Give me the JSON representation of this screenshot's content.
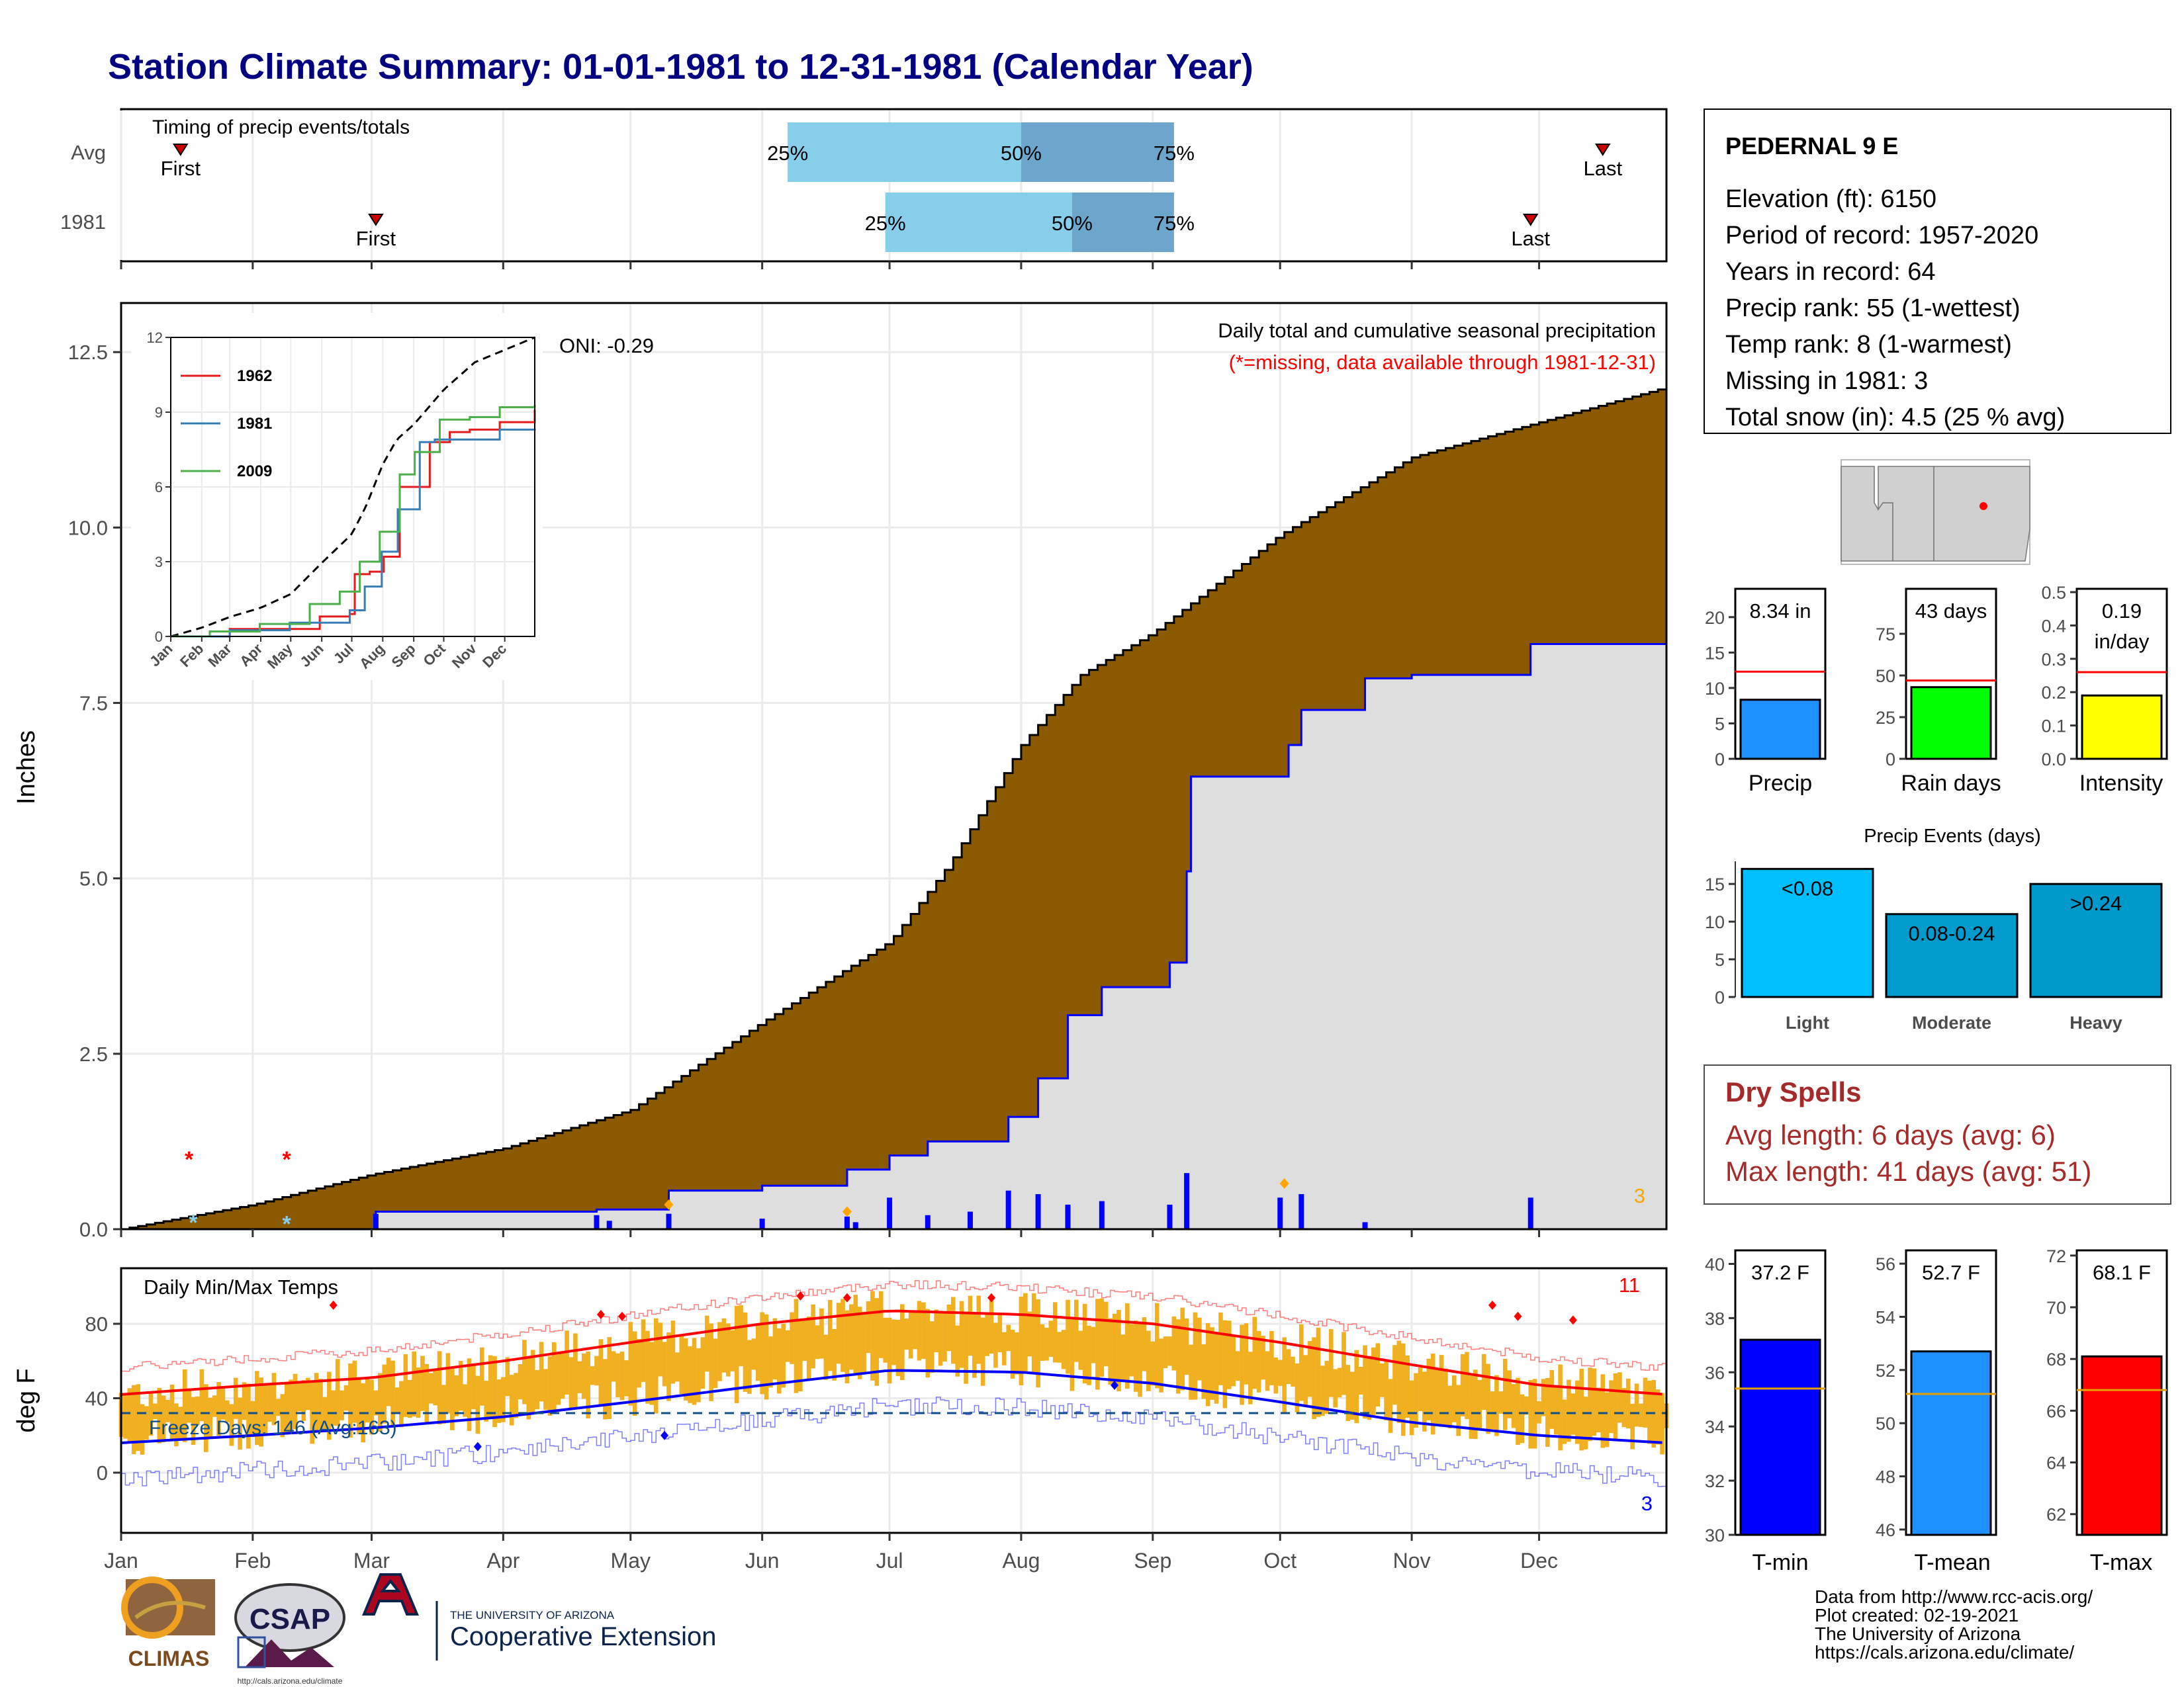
{
  "header": {
    "title": "Station Climate Summary: 01-01-1981 to 12-31-1981 (Calendar Year)"
  },
  "station": {
    "name": "PEDERNAL 9 E",
    "lines": [
      "Elevation (ft): 6150",
      "Period of record: 1957-2020",
      "Years in record: 64",
      "Precip rank: 55 (1-wettest)",
      "Temp rank: 8 (1-warmest)",
      "Missing in 1981: 3",
      "Total snow (in): 4.5 (25 % avg)"
    ]
  },
  "colors": {
    "title": "#000080",
    "accumulated": "#8B5A00",
    "precip_bar": "#1E90FF",
    "raindays_bar": "#00FF00",
    "intensity_bar": "#FFFF00",
    "light": "#00BFFF",
    "moderate": "#009ACD",
    "heavy": "#0099CC",
    "tmin": "#0000FF",
    "tmean": "#1E90FF",
    "tmax": "#FF0000",
    "temp_range": "#F0B020",
    "dry_spells": "#A52A2A"
  },
  "timing": {
    "title": "Timing of precip events/totals",
    "rows": [
      {
        "label": "Avg",
        "first_label": "First",
        "last_label": "Last",
        "first_date": "1981-01-15",
        "last_date": "1981-12-16",
        "p25": "1981-06-07",
        "p50": "1981-08-01",
        "p75": "1981-09-06",
        "p25_label": "25%",
        "p50_label": "50%",
        "p75_label": "75%"
      },
      {
        "label": "1981",
        "first_label": "First",
        "last_label": "Last",
        "first_date": "1981-03-02",
        "last_date": "1981-11-29",
        "p25": "1981-06-30",
        "p50": "1981-08-13",
        "p75": "1981-09-06",
        "p25_label": "25%",
        "p50_label": "50%",
        "p75_label": "75%"
      }
    ]
  },
  "main_chart": {
    "ylabel": "Inches",
    "subtitle": "Daily total and cumulative seasonal precipitation",
    "missing_note": "(*=missing, data available through 1981-12-31)",
    "oni": "ONI: -0.29",
    "missing_count": "3",
    "y_ticks": [
      "0.0",
      "2.5",
      "5.0",
      "7.5",
      "10.0",
      "12.5"
    ]
  },
  "months": [
    "Jan",
    "Feb",
    "Mar",
    "Apr",
    "May",
    "Jun",
    "Jul",
    "Aug",
    "Sep",
    "Oct",
    "Nov",
    "Dec"
  ],
  "inset": {
    "y_ticks": [
      "0",
      "3",
      "6",
      "9",
      "12"
    ],
    "legend": [
      {
        "name": "1962",
        "color": "#E41A1C"
      },
      {
        "name": "1981",
        "color": "#377EB8"
      },
      {
        "name": "2009",
        "color": "#4DAF4A"
      }
    ]
  },
  "temp_chart": {
    "ylabel": "deg F",
    "title": "Daily Min/Max Temps",
    "freeze_label": "Freeze Days: 146 (Avg:163)",
    "max_missing": "11",
    "min_missing": "3",
    "y_ticks": [
      "0",
      "40",
      "80"
    ]
  },
  "side_panels": {
    "precip": {
      "label": "Precip",
      "value_text": "8.34 in",
      "ticks": [
        "0",
        "5",
        "10",
        "15",
        "20"
      ]
    },
    "raindays": {
      "label": "Rain days",
      "value_text": "43 days",
      "ticks": [
        "0",
        "25",
        "50",
        "75"
      ]
    },
    "intensity": {
      "label": "Intensity",
      "value_line1": "0.19",
      "value_line2": "in/day",
      "ticks": [
        "0.0",
        "0.1",
        "0.2",
        "0.3",
        "0.4",
        "0.5"
      ]
    },
    "events": {
      "title": "Precip Events (days)",
      "ticks": [
        "0",
        "5",
        "10",
        "15"
      ],
      "bars": [
        {
          "cat": "Light",
          "label": "<0.08"
        },
        {
          "cat": "Moderate",
          "label": "0.08-0.24"
        },
        {
          "cat": "Heavy",
          "label": ">0.24"
        }
      ]
    },
    "dry_spells": {
      "title": "Dry Spells",
      "line1": "Avg length: 6 days (avg: 6)",
      "line2": "Max length: 41 days (avg: 51)"
    },
    "tmin": {
      "label": "T-min",
      "value_text": "37.2 F",
      "ticks": [
        "30",
        "32",
        "34",
        "36",
        "38",
        "40"
      ]
    },
    "tmean": {
      "label": "T-mean",
      "value_text": "52.7 F",
      "ticks": [
        "46",
        "48",
        "50",
        "52",
        "54",
        "56"
      ]
    },
    "tmax": {
      "label": "T-max",
      "value_text": "68.1 F",
      "ticks": [
        "62",
        "64",
        "66",
        "68",
        "70",
        "72"
      ]
    }
  },
  "logos": {
    "climas": "CLIMAS",
    "csap": "CSAP",
    "csap_url": "http://cals.arizona.edu/climate",
    "ua_small": "THE UNIVERSITY OF ARIZONA",
    "ua_ext": "Cooperative Extension"
  },
  "footer": [
    "Data from http://www.rcc-acis.org/",
    "Plot created: 02-19-2021",
    "The University of Arizona",
    "https://cals.arizona.edu/climate/"
  ],
  "chart_data": [
    {
      "type": "area",
      "title": "Daily total and cumulative seasonal precipitation",
      "ylabel": "Inches",
      "ylim": [
        0,
        13.2
      ],
      "series": [
        {
          "name": "cumulative average",
          "x": [
            "01-01",
            "02-01",
            "03-01",
            "04-01",
            "05-01",
            "06-01",
            "07-01",
            "07-15",
            "08-01",
            "08-15",
            "09-01",
            "10-01",
            "11-01",
            "12-01",
            "12-31"
          ],
          "values": [
            0,
            0.35,
            0.78,
            1.15,
            1.7,
            2.95,
            4.1,
            5.2,
            6.9,
            7.9,
            8.5,
            9.9,
            11.0,
            11.5,
            12.0
          ]
        },
        {
          "name": "cumulative 1981",
          "x": [
            "01-01",
            "03-02",
            "04-23",
            "05-10",
            "06-01",
            "06-21",
            "07-01",
            "07-10",
            "07-29",
            "08-05",
            "08-12",
            "08-20",
            "09-05",
            "09-09",
            "09-10",
            "10-03",
            "10-06",
            "10-21",
            "11-01",
            "11-29",
            "12-31"
          ],
          "values": [
            0,
            0.25,
            0.28,
            0.55,
            0.62,
            0.85,
            1.05,
            1.25,
            1.6,
            2.15,
            3.05,
            3.45,
            3.8,
            5.1,
            6.45,
            6.9,
            7.4,
            7.85,
            7.9,
            8.34,
            8.34
          ]
        }
      ],
      "daily_events": [
        {
          "date": "03-02",
          "value": 0.22
        },
        {
          "date": "04-23",
          "value": 0.2
        },
        {
          "date": "04-26",
          "value": 0.12
        },
        {
          "date": "05-10",
          "value": 0.22
        },
        {
          "date": "06-01",
          "value": 0.15
        },
        {
          "date": "06-21",
          "value": 0.18
        },
        {
          "date": "06-23",
          "value": 0.1
        },
        {
          "date": "07-01",
          "value": 0.45
        },
        {
          "date": "07-10",
          "value": 0.2
        },
        {
          "date": "07-20",
          "value": 0.25
        },
        {
          "date": "07-29",
          "value": 0.55
        },
        {
          "date": "08-05",
          "value": 0.5
        },
        {
          "date": "08-12",
          "value": 0.35
        },
        {
          "date": "08-20",
          "value": 0.4
        },
        {
          "date": "09-05",
          "value": 0.35
        },
        {
          "date": "09-09",
          "value": 0.8
        },
        {
          "date": "10-01",
          "value": 0.45
        },
        {
          "date": "10-06",
          "value": 0.5
        },
        {
          "date": "10-21",
          "value": 0.1
        },
        {
          "date": "11-29",
          "value": 0.45
        }
      ]
    },
    {
      "type": "line",
      "title": "Daily Min/Max Temps",
      "ylabel": "deg F",
      "series": [
        {
          "name": "normal max",
          "x": [
            "01-01",
            "02-01",
            "03-01",
            "04-01",
            "05-01",
            "06-01",
            "07-01",
            "08-01",
            "09-01",
            "10-01",
            "11-01",
            "12-01",
            "12-31"
          ],
          "values": [
            42,
            47,
            51,
            60,
            70,
            80,
            87,
            85,
            80,
            70,
            58,
            47,
            42
          ]
        },
        {
          "name": "normal min",
          "x": [
            "01-01",
            "02-01",
            "03-01",
            "04-01",
            "05-01",
            "06-01",
            "07-01",
            "08-01",
            "09-01",
            "10-01",
            "11-01",
            "12-01",
            "12-31"
          ],
          "values": [
            16,
            20,
            24,
            30,
            38,
            47,
            55,
            54,
            48,
            38,
            27,
            20,
            16
          ]
        }
      ],
      "freeze_line": 32
    },
    {
      "type": "bar",
      "title": "Precip",
      "categories": [
        "Precip"
      ],
      "values": [
        8.34
      ],
      "average": 12.3,
      "ylim": [
        0,
        24
      ]
    },
    {
      "type": "bar",
      "title": "Rain days",
      "categories": [
        "Rain days"
      ],
      "values": [
        43
      ],
      "average": 47,
      "ylim": [
        0,
        102
      ]
    },
    {
      "type": "bar",
      "title": "Intensity",
      "categories": [
        "Intensity"
      ],
      "values": [
        0.19
      ],
      "average": 0.26,
      "ylim": [
        0,
        0.51
      ]
    },
    {
      "type": "bar",
      "title": "Precip Events (days)",
      "categories": [
        "Light",
        "Moderate",
        "Heavy"
      ],
      "values": [
        17,
        11,
        15
      ],
      "ylim": [
        0,
        18
      ]
    },
    {
      "type": "bar",
      "title": "T-min",
      "categories": [
        "T-min"
      ],
      "values": [
        37.2
      ],
      "average": 35.4,
      "ylim": [
        30,
        40.5
      ]
    },
    {
      "type": "bar",
      "title": "T-mean",
      "categories": [
        "T-mean"
      ],
      "values": [
        52.7
      ],
      "average": 51.1,
      "ylim": [
        45.8,
        56.5
      ]
    },
    {
      "type": "bar",
      "title": "T-max",
      "categories": [
        "T-max"
      ],
      "values": [
        68.1
      ],
      "average": 66.8,
      "ylim": [
        61.2,
        72.2
      ]
    }
  ]
}
